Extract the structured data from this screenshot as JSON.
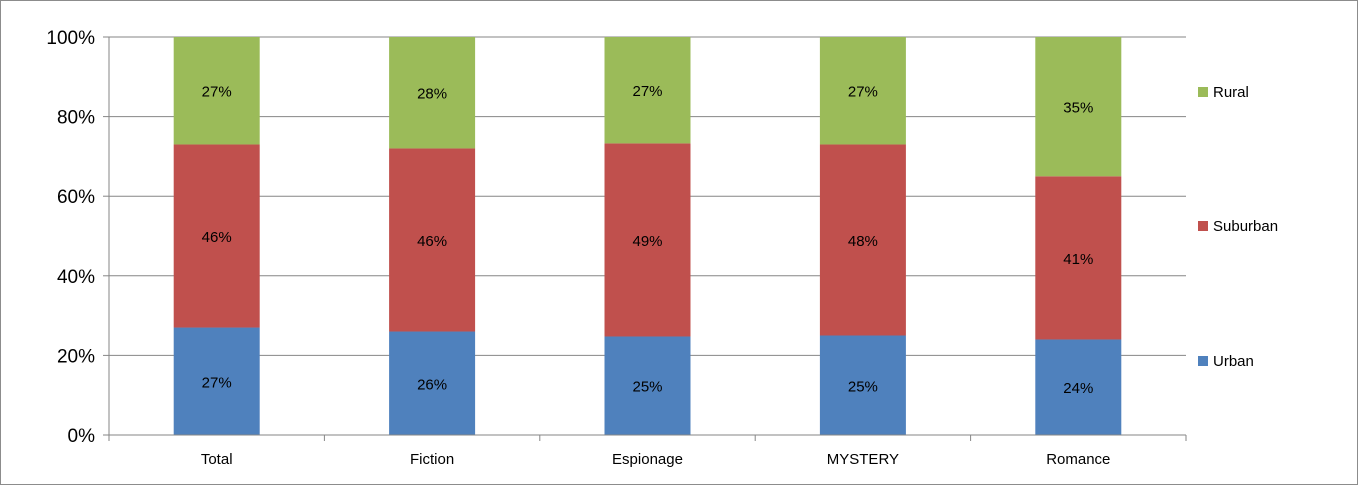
{
  "chart_data": {
    "type": "bar",
    "stacked": true,
    "percent_stacked": true,
    "categories": [
      "Total",
      "Fiction",
      "Espionage",
      "MYSTERY",
      "Romance"
    ],
    "series": [
      {
        "name": "Urban",
        "values": [
          27,
          26,
          25,
          25,
          24
        ],
        "labels": [
          "27%",
          "26%",
          "25%",
          "25%",
          "24%"
        ],
        "color": "#4f81bd"
      },
      {
        "name": "Suburban",
        "values": [
          46,
          46,
          49,
          48,
          41
        ],
        "labels": [
          "46%",
          "46%",
          "49%",
          "48%",
          "41%"
        ],
        "color": "#c0504d"
      },
      {
        "name": "Rural",
        "values": [
          27,
          28,
          27,
          27,
          35
        ],
        "labels": [
          "27%",
          "28%",
          "27%",
          "27%",
          "35%"
        ],
        "color": "#9bbb59"
      }
    ],
    "ylim": [
      0,
      100
    ],
    "yticks": [
      "0%",
      "20%",
      "40%",
      "60%",
      "80%",
      "100%"
    ],
    "grid": true,
    "legend_position": "right"
  }
}
